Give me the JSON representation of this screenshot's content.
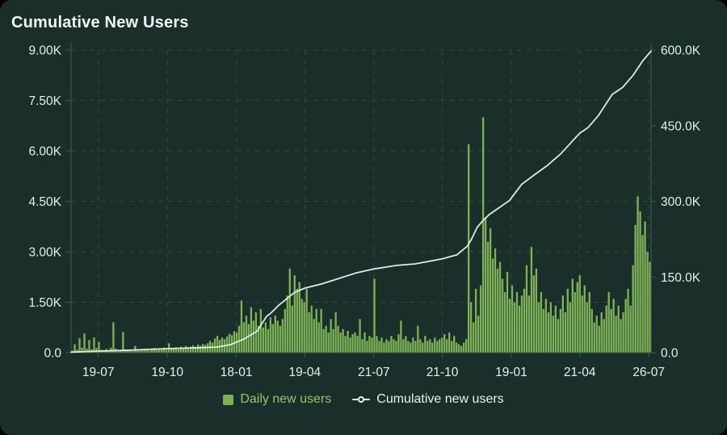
{
  "title": "Cumulative New Users",
  "legend": {
    "daily": "Daily new users",
    "cumulative": "Cumulative new users"
  },
  "colors": {
    "background": "#1b2f2a",
    "bar": "#7cb156",
    "line": "#dcece4",
    "grid": "#2f4a40",
    "axis": "#42594f",
    "tick_label": "#e3f0e9",
    "title": "#f2f7f4",
    "legend_daily_text": "#93c36a",
    "legend_cumulative_text": "#e9f3ee"
  },
  "chart_data": {
    "type": "bar",
    "subtype": "bar+line combo, dual y-axes",
    "title": "Cumulative New Users",
    "xlabel": "",
    "ylabel_left": "Daily new users",
    "ylabel_right": "Cumulative new users",
    "grid": "dashed, both axes",
    "legend_position": "bottom-center",
    "x_ticks": {
      "labels": [
        "19-07",
        "19-10",
        "18-01",
        "19-04",
        "21-07",
        "21-10",
        "19-01",
        "21-04",
        "26-07"
      ],
      "fracs": [
        0.047,
        0.166,
        0.285,
        0.403,
        0.522,
        0.64,
        0.759,
        0.877,
        0.996
      ]
    },
    "left_axis": {
      "min": 0,
      "max": 9000,
      "tick_values": [
        0,
        1500,
        3000,
        4500,
        6000,
        7500,
        9000
      ],
      "tick_labels": [
        "0.0",
        "1.50K",
        "3.00K",
        "4.50K",
        "6.00K",
        "7.50K",
        "9.00K"
      ]
    },
    "right_axis": {
      "min": 0,
      "max": 600000,
      "tick_values": [
        0,
        150000,
        300000,
        450000,
        600000
      ],
      "tick_labels": [
        "0.0",
        "150.0K",
        "300.0K",
        "450.0K",
        "600.0K"
      ]
    },
    "series": [
      {
        "name": "Daily new users",
        "type": "bar",
        "axis": "left",
        "color": "#7cb156",
        "values": [
          60,
          250,
          90,
          430,
          150,
          570,
          120,
          380,
          100,
          450,
          140,
          320,
          90,
          60,
          110,
          80,
          150,
          900,
          120,
          70,
          90,
          610,
          100,
          60,
          80,
          50,
          200,
          70,
          60,
          90,
          70,
          110,
          60,
          90,
          140,
          80,
          120,
          100,
          150,
          90,
          280,
          130,
          110,
          160,
          120,
          180,
          140,
          200,
          160,
          180,
          220,
          170,
          240,
          200,
          260,
          230,
          280,
          350,
          300,
          420,
          500,
          380,
          450,
          400,
          480,
          560,
          520,
          640,
          600,
          800,
          1550,
          900,
          1100,
          850,
          1350,
          950,
          1200,
          800,
          1300,
          750,
          900,
          700,
          1050,
          850,
          1100,
          950,
          800,
          1000,
          1300,
          1700,
          2500,
          1400,
          2300,
          1900,
          2100,
          1600,
          1500,
          1900,
          1200,
          1400,
          1000,
          1300,
          900,
          1300,
          700,
          800,
          600,
          1000,
          700,
          1200,
          800,
          600,
          700,
          500,
          650,
          450,
          550,
          600,
          500,
          1000,
          400,
          600,
          350,
          500,
          450,
          2200,
          500,
          350,
          450,
          300,
          400,
          350,
          500,
          400,
          350,
          550,
          950,
          400,
          500,
          350,
          300,
          450,
          350,
          800,
          400,
          300,
          500,
          350,
          400,
          300,
          450,
          350,
          400,
          450,
          550,
          400,
          600,
          350,
          500,
          300,
          250,
          200,
          300,
          400,
          6200,
          1500,
          900,
          1900,
          1100,
          2000,
          7000,
          4000,
          3300,
          3700,
          2800,
          3100,
          2500,
          2700,
          2200,
          1800,
          2400,
          1600,
          2000,
          1500,
          1800,
          1400,
          1700,
          1900,
          2600,
          1700,
          3150,
          2300,
          2500,
          1500,
          1800,
          1300,
          1600,
          1200,
          1500,
          1100,
          1400,
          1000,
          1300,
          1700,
          1200,
          1900,
          1500,
          2200,
          1800,
          2100,
          2300,
          1700,
          2000,
          1500,
          1800,
          1300,
          900,
          1100,
          800,
          1200,
          1000,
          1400,
          1800,
          1300,
          1600,
          1100,
          1400,
          1000,
          1200,
          1600,
          1900,
          1400,
          2600,
          3800,
          4650,
          4200,
          3500,
          3900,
          3000,
          2700
        ]
      },
      {
        "name": "Cumulative new users",
        "type": "line",
        "axis": "right",
        "color": "#dcece4",
        "x_frac": [
          0,
          0.047,
          0.1,
          0.166,
          0.21,
          0.251,
          0.275,
          0.298,
          0.321,
          0.337,
          0.344,
          0.358,
          0.372,
          0.386,
          0.403,
          0.431,
          0.453,
          0.491,
          0.522,
          0.561,
          0.593,
          0.64,
          0.665,
          0.683,
          0.69,
          0.7,
          0.71,
          0.721,
          0.735,
          0.756,
          0.777,
          0.798,
          0.821,
          0.844,
          0.868,
          0.877,
          0.891,
          0.909,
          0.933,
          0.951,
          0.969,
          0.986,
          1.0
        ],
        "values": [
          1000,
          3000,
          5000,
          8000,
          9500,
          11000,
          16000,
          27000,
          43000,
          72000,
          78000,
          94000,
          107000,
          120000,
          128000,
          136000,
          144000,
          158000,
          166000,
          173000,
          176000,
          186000,
          194000,
          211000,
          224000,
          248000,
          262000,
          274000,
          285000,
          302000,
          334000,
          352000,
          371000,
          394000,
          424000,
          435000,
          446000,
          470000,
          512000,
          526000,
          550000,
          579000,
          598000
        ]
      }
    ]
  }
}
